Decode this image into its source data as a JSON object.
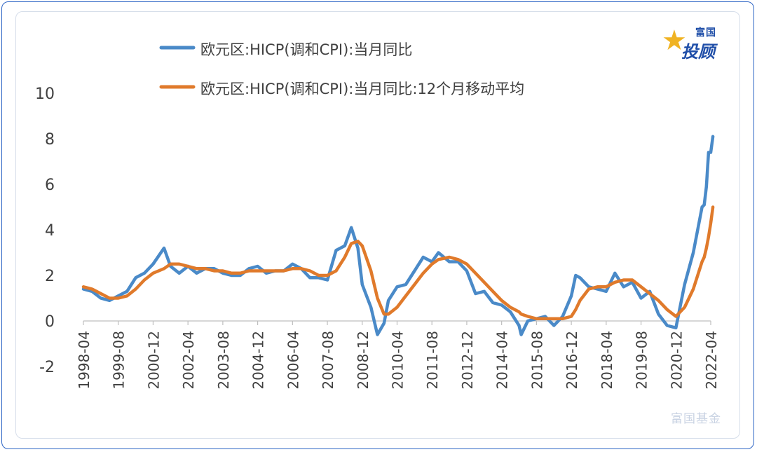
{
  "legend": {
    "series1_label": "欧元区:HICP(调和CPI):当月同比",
    "series2_label": "欧元区:HICP(调和CPI):当月同比:12个月移动平均"
  },
  "logo": {
    "top": "富国",
    "main": "投顾",
    "star_icon": "star-icon"
  },
  "watermark": {
    "text": "富国基金"
  },
  "colors": {
    "series1": "#4a8ac8",
    "series2": "#e07a2b",
    "axis": "#bfbfbf",
    "text": "#404040"
  },
  "chart_data": {
    "type": "line",
    "title": "",
    "xlabel": "",
    "ylabel": "",
    "ylim": [
      -2,
      10
    ],
    "yticks": [
      -2,
      0,
      2,
      4,
      6,
      8,
      10
    ],
    "xticks": [
      "1998-04",
      "1999-08",
      "2000-12",
      "2002-04",
      "2003-08",
      "2004-12",
      "2006-04",
      "2007-08",
      "2008-12",
      "2010-04",
      "2011-08",
      "2012-12",
      "2014-04",
      "2015-08",
      "2016-12",
      "2018-04",
      "2019-08",
      "2020-12",
      "2022-04"
    ],
    "grid": false,
    "legend_position": "top",
    "series": [
      {
        "name": "欧元区:HICP(调和CPI):当月同比",
        "points": [
          [
            "1998-04",
            1.4
          ],
          [
            "1998-08",
            1.3
          ],
          [
            "1998-12",
            1.0
          ],
          [
            "1999-04",
            0.9
          ],
          [
            "1999-08",
            1.1
          ],
          [
            "1999-12",
            1.3
          ],
          [
            "2000-04",
            1.9
          ],
          [
            "2000-08",
            2.1
          ],
          [
            "2000-12",
            2.5
          ],
          [
            "2001-05",
            3.2
          ],
          [
            "2001-08",
            2.4
          ],
          [
            "2001-12",
            2.1
          ],
          [
            "2002-04",
            2.4
          ],
          [
            "2002-08",
            2.1
          ],
          [
            "2002-12",
            2.3
          ],
          [
            "2003-04",
            2.3
          ],
          [
            "2003-08",
            2.1
          ],
          [
            "2003-12",
            2.0
          ],
          [
            "2004-04",
            2.0
          ],
          [
            "2004-08",
            2.3
          ],
          [
            "2004-12",
            2.4
          ],
          [
            "2005-04",
            2.1
          ],
          [
            "2005-08",
            2.2
          ],
          [
            "2005-12",
            2.2
          ],
          [
            "2006-04",
            2.5
          ],
          [
            "2006-08",
            2.3
          ],
          [
            "2006-12",
            1.9
          ],
          [
            "2007-04",
            1.9
          ],
          [
            "2007-08",
            1.8
          ],
          [
            "2007-12",
            3.1
          ],
          [
            "2008-04",
            3.3
          ],
          [
            "2008-07",
            4.1
          ],
          [
            "2008-10",
            3.2
          ],
          [
            "2008-12",
            1.6
          ],
          [
            "2009-04",
            0.6
          ],
          [
            "2009-07",
            -0.6
          ],
          [
            "2009-10",
            -0.1
          ],
          [
            "2009-12",
            0.9
          ],
          [
            "2010-04",
            1.5
          ],
          [
            "2010-08",
            1.6
          ],
          [
            "2010-12",
            2.2
          ],
          [
            "2011-04",
            2.8
          ],
          [
            "2011-08",
            2.6
          ],
          [
            "2011-11",
            3.0
          ],
          [
            "2012-04",
            2.6
          ],
          [
            "2012-08",
            2.6
          ],
          [
            "2012-12",
            2.2
          ],
          [
            "2013-04",
            1.2
          ],
          [
            "2013-08",
            1.3
          ],
          [
            "2013-12",
            0.8
          ],
          [
            "2014-04",
            0.7
          ],
          [
            "2014-08",
            0.4
          ],
          [
            "2014-12",
            -0.2
          ],
          [
            "2015-01",
            -0.6
          ],
          [
            "2015-04",
            0.0
          ],
          [
            "2015-08",
            0.1
          ],
          [
            "2015-12",
            0.2
          ],
          [
            "2016-04",
            -0.2
          ],
          [
            "2016-08",
            0.2
          ],
          [
            "2016-12",
            1.1
          ],
          [
            "2017-02",
            2.0
          ],
          [
            "2017-04",
            1.9
          ],
          [
            "2017-08",
            1.5
          ],
          [
            "2017-12",
            1.4
          ],
          [
            "2018-04",
            1.3
          ],
          [
            "2018-08",
            2.1
          ],
          [
            "2018-12",
            1.5
          ],
          [
            "2019-04",
            1.7
          ],
          [
            "2019-08",
            1.0
          ],
          [
            "2019-12",
            1.3
          ],
          [
            "2020-04",
            0.3
          ],
          [
            "2020-08",
            -0.2
          ],
          [
            "2020-12",
            -0.3
          ],
          [
            "2021-04",
            1.6
          ],
          [
            "2021-08",
            3.0
          ],
          [
            "2021-12",
            5.0
          ],
          [
            "2022-01",
            5.1
          ],
          [
            "2022-02",
            5.9
          ],
          [
            "2022-03",
            7.4
          ],
          [
            "2022-04",
            7.4
          ],
          [
            "2022-05",
            8.1
          ]
        ]
      },
      {
        "name": "欧元区:HICP(调和CPI):当月同比:12个月移动平均",
        "points": [
          [
            "1998-04",
            1.5
          ],
          [
            "1998-08",
            1.4
          ],
          [
            "1998-12",
            1.2
          ],
          [
            "1999-04",
            1.0
          ],
          [
            "1999-08",
            1.0
          ],
          [
            "1999-12",
            1.1
          ],
          [
            "2000-04",
            1.4
          ],
          [
            "2000-08",
            1.8
          ],
          [
            "2000-12",
            2.1
          ],
          [
            "2001-05",
            2.3
          ],
          [
            "2001-08",
            2.5
          ],
          [
            "2001-12",
            2.5
          ],
          [
            "2002-04",
            2.4
          ],
          [
            "2002-08",
            2.3
          ],
          [
            "2002-12",
            2.3
          ],
          [
            "2003-04",
            2.2
          ],
          [
            "2003-08",
            2.2
          ],
          [
            "2003-12",
            2.1
          ],
          [
            "2004-04",
            2.1
          ],
          [
            "2004-08",
            2.2
          ],
          [
            "2004-12",
            2.2
          ],
          [
            "2005-04",
            2.2
          ],
          [
            "2005-08",
            2.2
          ],
          [
            "2005-12",
            2.2
          ],
          [
            "2006-04",
            2.3
          ],
          [
            "2006-08",
            2.3
          ],
          [
            "2006-12",
            2.2
          ],
          [
            "2007-04",
            2.0
          ],
          [
            "2007-08",
            2.0
          ],
          [
            "2007-12",
            2.2
          ],
          [
            "2008-04",
            2.8
          ],
          [
            "2008-07",
            3.4
          ],
          [
            "2008-10",
            3.5
          ],
          [
            "2008-12",
            3.3
          ],
          [
            "2009-04",
            2.2
          ],
          [
            "2009-07",
            1.0
          ],
          [
            "2009-10",
            0.3
          ],
          [
            "2009-12",
            0.3
          ],
          [
            "2010-04",
            0.6
          ],
          [
            "2010-08",
            1.1
          ],
          [
            "2010-12",
            1.6
          ],
          [
            "2011-04",
            2.1
          ],
          [
            "2011-08",
            2.5
          ],
          [
            "2011-11",
            2.7
          ],
          [
            "2012-04",
            2.8
          ],
          [
            "2012-08",
            2.7
          ],
          [
            "2012-12",
            2.5
          ],
          [
            "2013-04",
            2.1
          ],
          [
            "2013-08",
            1.7
          ],
          [
            "2013-12",
            1.3
          ],
          [
            "2014-04",
            0.9
          ],
          [
            "2014-08",
            0.6
          ],
          [
            "2014-12",
            0.4
          ],
          [
            "2015-01",
            0.3
          ],
          [
            "2015-04",
            0.2
          ],
          [
            "2015-08",
            0.1
          ],
          [
            "2015-12",
            0.1
          ],
          [
            "2016-04",
            0.1
          ],
          [
            "2016-08",
            0.1
          ],
          [
            "2016-12",
            0.2
          ],
          [
            "2017-02",
            0.5
          ],
          [
            "2017-04",
            0.9
          ],
          [
            "2017-08",
            1.4
          ],
          [
            "2017-12",
            1.5
          ],
          [
            "2018-04",
            1.5
          ],
          [
            "2018-08",
            1.7
          ],
          [
            "2018-12",
            1.8
          ],
          [
            "2019-04",
            1.8
          ],
          [
            "2019-08",
            1.5
          ],
          [
            "2019-12",
            1.2
          ],
          [
            "2020-04",
            0.9
          ],
          [
            "2020-08",
            0.5
          ],
          [
            "2020-12",
            0.2
          ],
          [
            "2021-04",
            0.6
          ],
          [
            "2021-08",
            1.4
          ],
          [
            "2021-12",
            2.6
          ],
          [
            "2022-01",
            2.8
          ],
          [
            "2022-02",
            3.2
          ],
          [
            "2022-03",
            3.7
          ],
          [
            "2022-04",
            4.3
          ],
          [
            "2022-05",
            5.0
          ]
        ]
      }
    ]
  }
}
